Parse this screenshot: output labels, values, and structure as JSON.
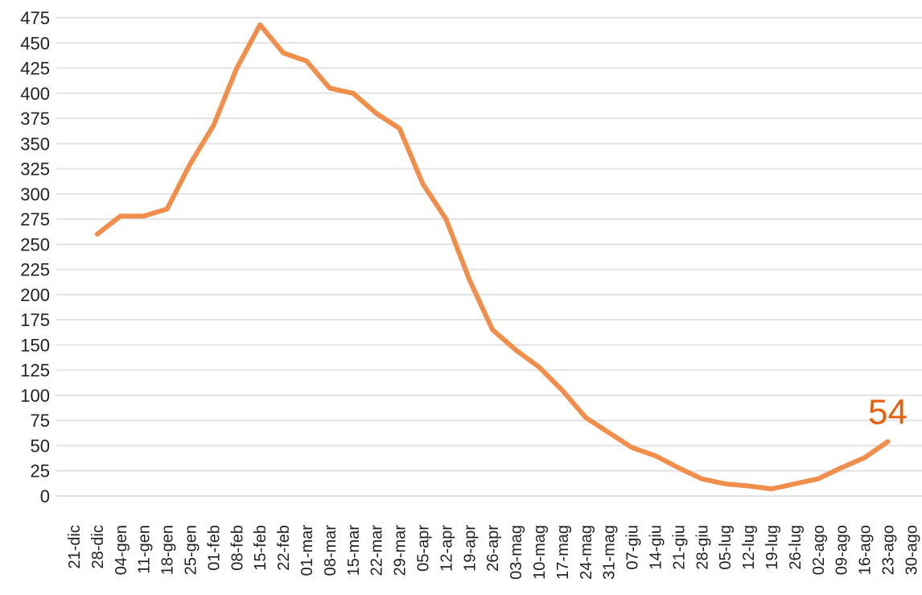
{
  "chart_data": {
    "type": "line",
    "color": "#f28e4b",
    "label_color": "#e8600e",
    "grid": true,
    "categories": [
      "21-dic",
      "28-dic",
      "04-gen",
      "11-gen",
      "18-gen",
      "25-gen",
      "01-feb",
      "08-feb",
      "15-feb",
      "22-feb",
      "01-mar",
      "08-mar",
      "15-mar",
      "22-mar",
      "29-mar",
      "05-apr",
      "12-apr",
      "19-apr",
      "26-apr",
      "03-mag",
      "10-mag",
      "17-mag",
      "24-mag",
      "31-mag",
      "07-giu",
      "14-giu",
      "21-giu",
      "28-giu",
      "05-lug",
      "12-lug",
      "19-lug",
      "26-lug",
      "02-ago",
      "09-ago",
      "16-ago",
      "23-ago",
      "30-ago"
    ],
    "values": [
      null,
      260,
      278,
      278,
      285,
      330,
      368,
      425,
      468,
      440,
      432,
      405,
      400,
      380,
      365,
      310,
      275,
      215,
      165,
      145,
      128,
      105,
      78,
      63,
      48,
      40,
      28,
      17,
      12,
      10,
      7,
      12,
      17,
      28,
      38,
      54,
      null
    ],
    "ylim": [
      0,
      475
    ],
    "yticks": [
      0,
      25,
      50,
      75,
      100,
      125,
      150,
      175,
      200,
      225,
      250,
      275,
      300,
      325,
      350,
      375,
      400,
      425,
      450,
      475
    ]
  }
}
